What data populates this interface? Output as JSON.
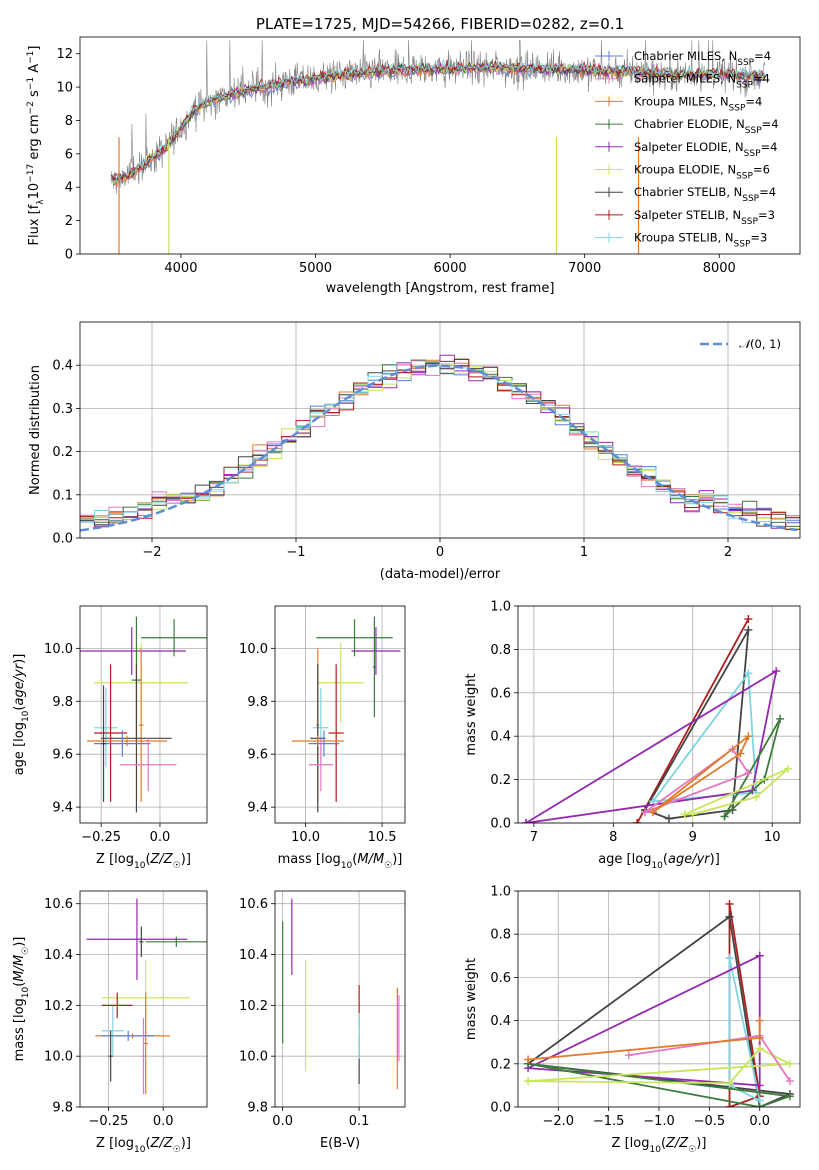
{
  "figure_title": "PLATE=1725, MJD=54266, FIBERID=0282, z=0.1",
  "chart_data": [
    {
      "id": "spectrum",
      "type": "line",
      "title": "PLATE=1725, MJD=54266, FIBERID=0282, z=0.1",
      "xlabel": "wavelength [Angstrom, rest frame]",
      "ylabel": "Flux [f_λ10^-17 erg cm^-2 s^-1 A^-1]",
      "xlim": [
        3250,
        8600
      ],
      "ylim": [
        0,
        13
      ],
      "xticks": [
        4000,
        5000,
        6000,
        7000,
        8000
      ],
      "yticks": [
        0,
        2,
        4,
        6,
        8,
        10,
        12
      ],
      "grid": false,
      "legend_position": "right",
      "legend": [
        {
          "name": "Chabrier MILES, N_SSP=4",
          "color": "#5c7fd6"
        },
        {
          "name": "Salpeter MILES, N_SSP=4",
          "color": "#e377c2"
        },
        {
          "name": "Kroupa MILES, N_SSP=4",
          "color": "#e07b2a"
        },
        {
          "name": "Chabrier ELODIE, N_SSP=4",
          "color": "#3d7a3d"
        },
        {
          "name": "Salpeter ELODIE, N_SSP=4",
          "color": "#9428b0"
        },
        {
          "name": "Kroupa ELODIE, N_SSP=6",
          "color": "#c8e65a"
        },
        {
          "name": "Chabrier STELIB, N_SSP=4",
          "color": "#444444"
        },
        {
          "name": "Salpeter STELIB, N_SSP=3",
          "color": "#b01c1c"
        },
        {
          "name": "Kroupa STELIB, N_SSP=3",
          "color": "#7fd4e0"
        }
      ],
      "data_color": "#808080",
      "model_anchor_x": [
        3500,
        3600,
        3700,
        3800,
        3900,
        4000,
        4100,
        4200,
        4400,
        4600,
        4800,
        5000,
        5200,
        5400,
        5600,
        5800,
        6000,
        6200,
        6400,
        6600,
        6800,
        7000,
        7200,
        7400,
        7600,
        7800,
        8000,
        8200,
        8350
      ],
      "model_anchor_y": [
        4.4,
        4.7,
        5.2,
        5.8,
        6.5,
        7.6,
        8.6,
        9.1,
        9.6,
        10.0,
        10.3,
        10.5,
        10.7,
        10.9,
        11.0,
        11.1,
        11.1,
        11.15,
        11.15,
        11.1,
        11.1,
        11.0,
        10.95,
        10.9,
        10.8,
        10.8,
        10.75,
        10.7,
        10.6
      ]
    },
    {
      "id": "residuals",
      "type": "step",
      "xlabel": "(data-model)/error",
      "ylabel": "Normed distribution",
      "xlim": [
        -2.5,
        2.5
      ],
      "ylim": [
        0,
        0.5
      ],
      "xticks": [
        -2,
        -1,
        0,
        1,
        2
      ],
      "yticks": [
        0.0,
        0.1,
        0.2,
        0.3,
        0.4
      ],
      "grid": true,
      "legend_position": "top-right",
      "reference_curve": {
        "name": "N(0,1)",
        "mean": 0,
        "sigma": 1,
        "color": "#5c8fd6"
      },
      "bin_width": 0.1
    },
    {
      "id": "age_vs_Z",
      "type": "scatter",
      "xlabel": "Z [log10(Z/Z☉)]",
      "ylabel": "age [log10(age/yr)]",
      "xlim": [
        -0.34,
        0.2
      ],
      "ylim": [
        9.34,
        10.16
      ],
      "xticks": [
        -0.25,
        0.0
      ],
      "yticks": [
        9.4,
        9.6,
        9.8,
        10.0
      ],
      "grid": true,
      "points": [
        {
          "color": "#9428b0",
          "x": -0.12,
          "xerr": 0.23,
          "y": 9.99,
          "yerr": 0.09
        },
        {
          "color": "#3d7a3d",
          "x": -0.1,
          "xerr": 0.02,
          "y": 9.88,
          "yerr": 0.24
        },
        {
          "color": "#c8e65a",
          "x": -0.08,
          "xerr": 0.2,
          "y": 9.87,
          "yerr": 0.15
        },
        {
          "color": "#3d7a3d",
          "x": 0.06,
          "xerr": 0.14,
          "y": 10.04,
          "yerr": 0.07
        },
        {
          "color": "#e07b2a",
          "x": -0.08,
          "xerr": 0.01,
          "y": 9.71,
          "yerr": 0.29
        },
        {
          "color": "#7fd4e0",
          "x": -0.23,
          "xerr": 0.05,
          "y": 9.7,
          "yerr": 0.15
        },
        {
          "color": "#444444",
          "x": -0.1,
          "xerr": 0.15,
          "y": 9.66,
          "yerr": 0.28
        },
        {
          "color": "#b01c1c",
          "x": -0.21,
          "xerr": 0.07,
          "y": 9.68,
          "yerr": 0.26
        },
        {
          "color": "#e07b2a",
          "x": -0.14,
          "xerr": 0.17,
          "y": 9.65,
          "yerr": 0.02
        },
        {
          "color": "#5c7fd6",
          "x": -0.16,
          "xerr": 0.12,
          "y": 9.64,
          "yerr": 0.05
        },
        {
          "color": "#e377c2",
          "x": -0.05,
          "xerr": 0.12,
          "y": 9.56,
          "yerr": 0.1
        },
        {
          "color": "#444444",
          "x": -0.24,
          "xerr": 0.01,
          "y": 9.64,
          "yerr": 0.22
        }
      ]
    },
    {
      "id": "age_vs_mass",
      "type": "scatter",
      "xlabel": "mass [log10(M/M☉)]",
      "ylabel": "",
      "xlim": [
        9.8,
        10.65
      ],
      "ylim": [
        9.34,
        10.16
      ],
      "xticks": [
        10.0,
        10.5
      ],
      "yticks": [
        9.4,
        9.6,
        9.8,
        10.0
      ],
      "grid": true,
      "points": [
        {
          "color": "#9428b0",
          "x": 10.46,
          "xerr": 0.16,
          "y": 9.99,
          "yerr": 0.09
        },
        {
          "color": "#3d7a3d",
          "x": 10.32,
          "xerr": 0.25,
          "y": 10.04,
          "yerr": 0.07
        },
        {
          "color": "#3d7a3d",
          "x": 10.45,
          "xerr": 0.01,
          "y": 9.93,
          "yerr": 0.19
        },
        {
          "color": "#c8e65a",
          "x": 10.23,
          "xerr": 0.15,
          "y": 9.87,
          "yerr": 0.15
        },
        {
          "color": "#e07b2a",
          "x": 10.08,
          "xerr": 0.01,
          "y": 9.71,
          "yerr": 0.29
        },
        {
          "color": "#7fd4e0",
          "x": 10.1,
          "xerr": 0.05,
          "y": 9.7,
          "yerr": 0.15
        },
        {
          "color": "#444444",
          "x": 10.08,
          "xerr": 0.05,
          "y": 9.66,
          "yerr": 0.28
        },
        {
          "color": "#b01c1c",
          "x": 10.2,
          "xerr": 0.05,
          "y": 9.68,
          "yerr": 0.26
        },
        {
          "color": "#e07b2a",
          "x": 10.08,
          "xerr": 0.17,
          "y": 9.65,
          "yerr": 0.02
        },
        {
          "color": "#5c7fd6",
          "x": 10.12,
          "xerr": 0.1,
          "y": 9.64,
          "yerr": 0.05
        },
        {
          "color": "#e377c2",
          "x": 10.1,
          "xerr": 0.08,
          "y": 9.56,
          "yerr": 0.1
        }
      ]
    },
    {
      "id": "massweight_vs_age",
      "type": "line",
      "xlabel": "age [log10(age/yr)]",
      "ylabel": "mass weight",
      "xlim": [
        6.8,
        10.35
      ],
      "ylim": [
        0,
        1.0
      ],
      "xticks": [
        7,
        8,
        9,
        10
      ],
      "yticks": [
        0.0,
        0.2,
        0.4,
        0.6,
        0.8,
        1.0
      ],
      "grid": true,
      "series": [
        {
          "color": "#b01c1c",
          "x": [
            8.3,
            9.7,
            8.3
          ],
          "y": [
            0.0,
            0.94,
            0.0
          ]
        },
        {
          "color": "#444444",
          "x": [
            8.4,
            9.7,
            9.5,
            8.7,
            8.4
          ],
          "y": [
            0.06,
            0.89,
            0.06,
            0.02,
            0.06
          ]
        },
        {
          "color": "#7fd4e0",
          "x": [
            8.5,
            9.7,
            9.8,
            8.5
          ],
          "y": [
            0.1,
            0.69,
            0.14,
            0.1
          ]
        },
        {
          "color": "#9428b0",
          "x": [
            6.9,
            10.05,
            9.75,
            6.9
          ],
          "y": [
            0.0,
            0.7,
            0.15,
            0.0
          ]
        },
        {
          "color": "#3d7a3d",
          "x": [
            9.4,
            10.1,
            9.9,
            9.4
          ],
          "y": [
            0.03,
            0.48,
            0.2,
            0.03
          ]
        },
        {
          "color": "#c8e65a",
          "x": [
            8.9,
            10.2,
            9.8,
            9.0,
            8.9
          ],
          "y": [
            0.04,
            0.25,
            0.12,
            0.04,
            0.04
          ]
        },
        {
          "color": "#e377c2",
          "x": [
            8.4,
            9.5,
            9.7,
            8.4
          ],
          "y": [
            0.05,
            0.34,
            0.23,
            0.05
          ]
        },
        {
          "color": "#e07b2a",
          "x": [
            8.5,
            9.6,
            9.7,
            8.5
          ],
          "y": [
            0.05,
            0.32,
            0.4,
            0.05
          ]
        }
      ]
    },
    {
      "id": "mass_vs_Z",
      "type": "scatter",
      "xlabel": "Z [log10(Z/Z☉)]",
      "ylabel": "mass [log10(M/M☉)]",
      "xlim": [
        -0.38,
        0.2
      ],
      "ylim": [
        9.8,
        10.65
      ],
      "xticks": [
        -0.25,
        0.0
      ],
      "yticks": [
        9.8,
        10.0,
        10.2,
        10.4,
        10.6
      ],
      "grid": true,
      "points": [
        {
          "color": "#9428b0",
          "x": -0.12,
          "xerr": 0.23,
          "y": 10.46,
          "yerr": 0.16
        },
        {
          "color": "#3d7a3d",
          "x": 0.06,
          "xerr": 0.14,
          "y": 10.45,
          "yerr": 0.02
        },
        {
          "color": "#c8e65a",
          "x": -0.08,
          "xerr": 0.2,
          "y": 10.23,
          "yerr": 0.15
        },
        {
          "color": "#444444",
          "x": -0.1,
          "xerr": 0.01,
          "y": 10.45,
          "yerr": 0.06
        },
        {
          "color": "#e07b2a",
          "x": -0.08,
          "xerr": 0.01,
          "y": 10.05,
          "yerr": 0.2
        },
        {
          "color": "#7fd4e0",
          "x": -0.23,
          "xerr": 0.05,
          "y": 10.1,
          "yerr": 0.1
        },
        {
          "color": "#b01c1c",
          "x": -0.21,
          "xerr": 0.07,
          "y": 10.2,
          "yerr": 0.05
        },
        {
          "color": "#e07b2a",
          "x": -0.14,
          "xerr": 0.17,
          "y": 10.08,
          "yerr": 0.01
        },
        {
          "color": "#5c7fd6",
          "x": -0.16,
          "xerr": 0.12,
          "y": 10.08,
          "yerr": 0.02
        },
        {
          "color": "#444444",
          "x": -0.24,
          "xerr": 0.01,
          "y": 10.0,
          "yerr": 0.1
        },
        {
          "color": "#e377c2",
          "x": -0.09,
          "xerr": 0.01,
          "y": 10.0,
          "yerr": 0.15
        }
      ]
    },
    {
      "id": "mass_vs_EBV",
      "type": "scatter",
      "xlabel": "E(B-V)",
      "ylabel": "",
      "xlim": [
        -0.01,
        0.16
      ],
      "ylim": [
        9.8,
        10.65
      ],
      "xticks": [
        0.0,
        0.1
      ],
      "yticks": [
        9.8,
        10.0,
        10.2,
        10.4,
        10.6
      ],
      "grid": true,
      "points": [
        {
          "color": "#3d7a3d",
          "x": 0.0,
          "y": 10.29,
          "yerr": 0.24
        },
        {
          "color": "#9428b0",
          "x": 0.012,
          "y": 10.47,
          "yerr": 0.15
        },
        {
          "color": "#c8e65a",
          "x": 0.03,
          "y": 10.16,
          "yerr": 0.22
        },
        {
          "color": "#b01c1c",
          "x": 0.1,
          "y": 10.19,
          "yerr": 0.09
        },
        {
          "color": "#444444",
          "x": 0.1,
          "y": 9.99,
          "yerr": 0.1
        },
        {
          "color": "#7fd4e0",
          "x": 0.1,
          "y": 10.08,
          "yerr": 0.09
        },
        {
          "color": "#e07b2a",
          "x": 0.15,
          "y": 10.07,
          "yerr": 0.2
        },
        {
          "color": "#e377c2",
          "x": 0.152,
          "y": 10.11,
          "yerr": 0.13
        }
      ]
    },
    {
      "id": "massweight_vs_Z",
      "type": "line",
      "xlabel": "Z [log10(Z/Z☉)]",
      "ylabel": "mass weight",
      "xlim": [
        -2.4,
        0.4
      ],
      "ylim": [
        0,
        1.0
      ],
      "xticks": [
        -2.0,
        -1.5,
        -1.0,
        -0.5,
        0.0
      ],
      "yticks": [
        0.0,
        0.2,
        0.4,
        0.6,
        0.8,
        1.0
      ],
      "grid": true,
      "series": [
        {
          "color": "#b01c1c",
          "x": [
            -0.3,
            -0.3,
            0.0,
            -0.3
          ],
          "y": [
            0.0,
            0.94,
            0.05,
            0.0
          ]
        },
        {
          "color": "#444444",
          "x": [
            -0.3,
            0.0,
            0.3,
            -2.3,
            -0.3
          ],
          "y": [
            0.88,
            0.0,
            0.06,
            0.2,
            0.88
          ]
        },
        {
          "color": "#7fd4e0",
          "x": [
            -0.3,
            -0.3,
            0.0,
            -0.3
          ],
          "y": [
            0.69,
            0.1,
            0.03,
            0.69
          ]
        },
        {
          "color": "#9428b0",
          "x": [
            0.0,
            0.0,
            -2.3,
            0.0
          ],
          "y": [
            0.7,
            0.1,
            0.18,
            0.7
          ]
        },
        {
          "color": "#3d7a3d",
          "x": [
            -2.3,
            0.3,
            0.0,
            -2.3
          ],
          "y": [
            0.2,
            0.05,
            0.0,
            0.2
          ]
        },
        {
          "color": "#c8e65a",
          "x": [
            -2.3,
            -0.3,
            0.0,
            0.3,
            -2.3
          ],
          "y": [
            0.12,
            0.11,
            0.27,
            0.2,
            0.12
          ]
        },
        {
          "color": "#e377c2",
          "x": [
            -1.3,
            0.0,
            0.3
          ],
          "y": [
            0.24,
            0.33,
            0.12
          ]
        },
        {
          "color": "#e07b2a",
          "x": [
            -2.3,
            0.0,
            0.0
          ],
          "y": [
            0.22,
            0.32,
            0.4
          ]
        }
      ]
    }
  ]
}
